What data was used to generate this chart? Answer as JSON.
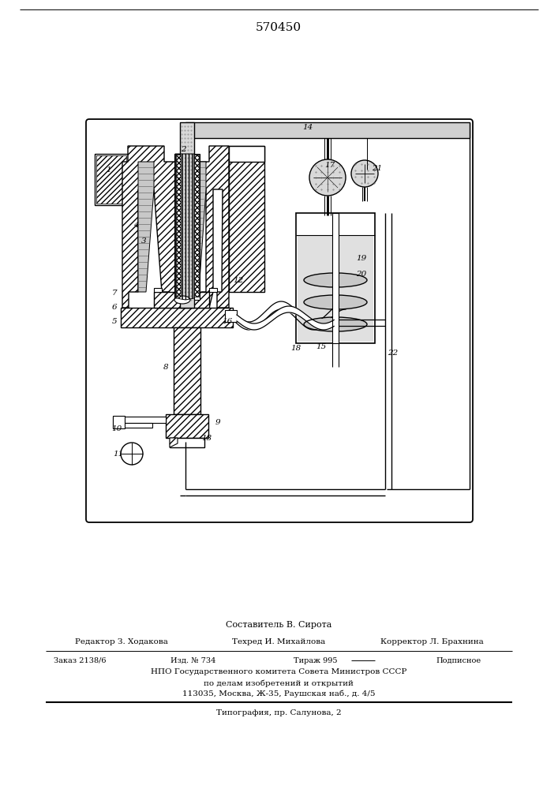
{
  "title": "570450",
  "title_fontsize": 11,
  "bg_color": "#ffffff",
  "footer": {
    "line1_label": "Составитель В. Сирота",
    "line2_left": "Редактор З. Ходакова",
    "line2_mid": "Техред И. Михайлова",
    "line2_right": "Корректор Л. Брахнина",
    "line3_col1": "Заказ 2138/6",
    "line3_col2": "Изд. № 734",
    "line3_col3": "Тираж 995",
    "line3_col4": "Подписное",
    "line4": "НПО Государственного комитета Совета Министров СССР",
    "line5": "по делам изобретений и открытий",
    "line6": "113035, Москва, Ж-35, Раушская наб., д. 4/5",
    "line7": "Типография, пр. Салунова, 2"
  }
}
